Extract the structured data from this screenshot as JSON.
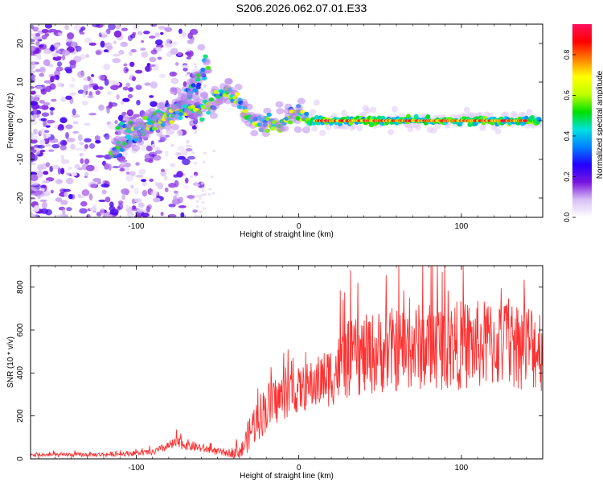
{
  "title": "S206.2026.062.07.01.E33",
  "chart_data": [
    {
      "type": "heatmap",
      "xlabel": "Height of straight line (km)",
      "ylabel": "Frequency (Hz)",
      "xlim": [
        -165,
        150
      ],
      "ylim": [
        -25,
        25
      ],
      "xticks": [
        -100,
        0,
        100
      ],
      "yticks": [
        -20,
        -10,
        0,
        10,
        20
      ],
      "colorbar": {
        "label": "Normalized spectral amplitude",
        "range": [
          0.0,
          0.95
        ],
        "ticks": [
          0.0,
          0.2,
          0.4,
          0.6,
          0.8
        ],
        "tick_labels": [
          "0.0",
          "0.2",
          "0.4",
          "0.6",
          "0.8"
        ],
        "colormap": [
          "#ffffff",
          "#d8c0f4",
          "#7a14e0",
          "#2200ff",
          "#0080ff",
          "#00e0e0",
          "#00e000",
          "#c0ff00",
          "#ffff00",
          "#ff8000",
          "#ff0000",
          "#ff1060"
        ]
      },
      "features": [
        {
          "name": "noise",
          "x_range": [
            -165,
            -60
          ],
          "f_range": [
            -25,
            25
          ],
          "amp": 0.18
        },
        {
          "name": "ridge",
          "points": [
            [
              -115,
              -8
            ],
            [
              -100,
              -4
            ],
            [
              -90,
              0
            ],
            [
              -80,
              2
            ],
            [
              -70,
              5
            ],
            [
              -62,
              11
            ],
            [
              -55,
              15
            ]
          ],
          "amp": 0.45
        },
        {
          "name": "ridge",
          "points": [
            [
              -110,
              -2
            ],
            [
              -95,
              -1
            ],
            [
              -85,
              0
            ],
            [
              -72,
              3
            ],
            [
              -60,
              3
            ],
            [
              -52,
              5
            ],
            [
              -45,
              8
            ],
            [
              -38,
              6
            ],
            [
              -33,
              2
            ],
            [
              -28,
              0
            ],
            [
              -20,
              -1
            ],
            [
              -12,
              -1
            ],
            [
              -5,
              1
            ],
            [
              0,
              2
            ],
            [
              5,
              0
            ]
          ],
          "amp": 0.55
        },
        {
          "name": "carrier",
          "x_range": [
            5,
            148
          ],
          "f": 0,
          "amp": 0.95
        }
      ]
    },
    {
      "type": "line",
      "xlabel": "Height of straight line (km)",
      "ylabel": "SNR (10 * v/v)",
      "xlim": [
        -165,
        150
      ],
      "ylim": [
        0,
        900
      ],
      "xticks": [
        -100,
        0,
        100
      ],
      "yticks": [
        0,
        200,
        400,
        600,
        800
      ],
      "color": "#ff3030",
      "envelope": {
        "x": [
          -165,
          -120,
          -90,
          -75,
          -60,
          -45,
          -35,
          -28,
          -20,
          -10,
          0,
          10,
          20,
          30,
          50,
          70,
          90,
          110,
          130,
          148
        ],
        "mean": [
          18,
          20,
          30,
          75,
          50,
          25,
          40,
          160,
          240,
          290,
          320,
          350,
          390,
          460,
          500,
          520,
          530,
          530,
          540,
          520
        ],
        "spread": [
          12,
          14,
          20,
          40,
          30,
          20,
          60,
          140,
          170,
          160,
          150,
          170,
          210,
          260,
          280,
          290,
          300,
          300,
          300,
          300
        ]
      }
    }
  ]
}
